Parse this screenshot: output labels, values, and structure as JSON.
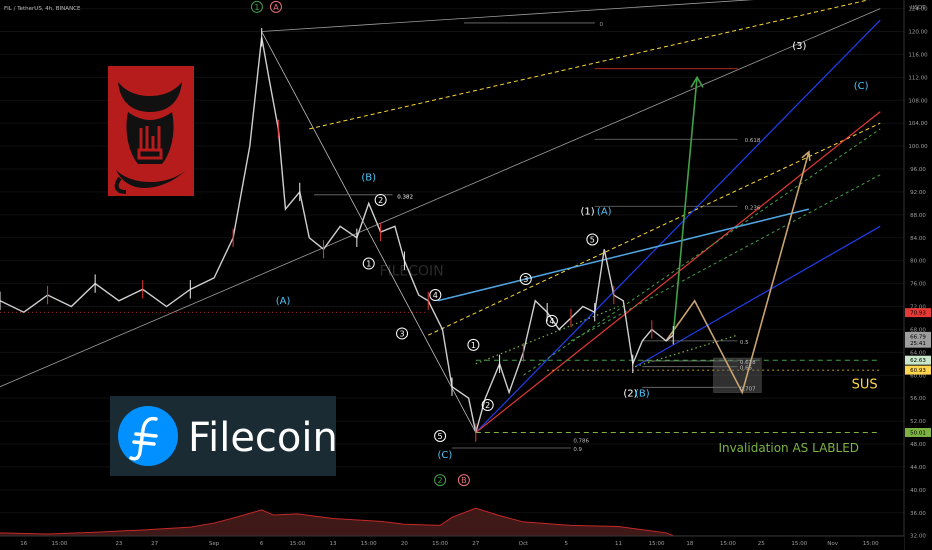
{
  "header": {
    "symbol_line": "FIL / TetherUS, 4h, BINANCE"
  },
  "chart_data": {
    "type": "candlestick",
    "title": "",
    "x_axis": {
      "labels": [
        "16",
        "15:00",
        "23",
        "27",
        "Sep",
        "6",
        "15:00",
        "13",
        "15:00",
        "20",
        "15:00",
        "27",
        "Oct",
        "5",
        "11",
        "15:00",
        "18",
        "15:00",
        "25",
        "15:00",
        "Nov",
        "15:00"
      ],
      "positions": [
        0,
        1.5,
        4,
        5.5,
        8,
        10,
        11.5,
        13,
        14.5,
        16,
        17.5,
        19,
        21,
        22.8,
        25,
        26.6,
        28,
        29.6,
        31,
        32.6,
        34,
        35.6
      ],
      "range": [
        -1,
        37
      ]
    },
    "y_axis": {
      "unit": "USDT",
      "min": 29.5,
      "max": 125.5,
      "ticks": [
        32,
        36,
        40,
        44,
        48,
        52,
        56,
        60,
        64,
        68,
        72,
        76,
        80,
        84,
        88,
        92,
        96,
        100,
        104,
        108,
        112,
        116,
        120,
        124
      ],
      "scale_labels": [
        "124.00",
        "120.00",
        "116.00",
        "112.00",
        "108.00",
        "104.00",
        "100.00",
        "96.00",
        "92.00",
        "88.00",
        "84.00",
        "80.00",
        "76.00",
        "72.00",
        "68.00",
        "64.00",
        "60.00",
        "56.00",
        "52.00",
        "48.00",
        "44.00",
        "40.00",
        "36.00",
        "32.00"
      ]
    },
    "price_tags": [
      {
        "label": "70.93",
        "value": 70.93,
        "color": "#e53935"
      },
      {
        "label": "66.79",
        "value": 66.79,
        "color": "#9e9e9e"
      },
      {
        "label": "25:41",
        "value": 65.6,
        "color": "#9e9e9e"
      },
      {
        "label": "62.63",
        "value": 62.63,
        "color": "#c8e6c9"
      },
      {
        "label": "60.93",
        "value": 60.9,
        "color": "#ffd54f"
      },
      {
        "label": "50.01",
        "value": 50.01,
        "color": "#7cb342"
      }
    ],
    "price_path": [
      [
        -1,
        73
      ],
      [
        0,
        71
      ],
      [
        1,
        74
      ],
      [
        2,
        72
      ],
      [
        3,
        76
      ],
      [
        4,
        73
      ],
      [
        5,
        75
      ],
      [
        6,
        72
      ],
      [
        7,
        75
      ],
      [
        8,
        77
      ],
      [
        8.8,
        84
      ],
      [
        9.5,
        100
      ],
      [
        10,
        119
      ],
      [
        10.3,
        112
      ],
      [
        10.7,
        103
      ],
      [
        11,
        89
      ],
      [
        11.6,
        92
      ],
      [
        12,
        84
      ],
      [
        12.6,
        82
      ],
      [
        13.3,
        86
      ],
      [
        14,
        84
      ],
      [
        14.5,
        90
      ],
      [
        15,
        85
      ],
      [
        15.6,
        86
      ],
      [
        16,
        80
      ],
      [
        16.6,
        74
      ],
      [
        17,
        73
      ],
      [
        17.6,
        68
      ],
      [
        18,
        58
      ],
      [
        18.7,
        56
      ],
      [
        19,
        50
      ],
      [
        19.4,
        56
      ],
      [
        20,
        62
      ],
      [
        20.4,
        57
      ],
      [
        21,
        64
      ],
      [
        21.5,
        73
      ],
      [
        22,
        71
      ],
      [
        22.5,
        68
      ],
      [
        23,
        70
      ],
      [
        23.5,
        72
      ],
      [
        24,
        71
      ],
      [
        24.4,
        82
      ],
      [
        24.8,
        74
      ],
      [
        25.2,
        73
      ],
      [
        25.6,
        62
      ],
      [
        26,
        66
      ],
      [
        26.4,
        68
      ],
      [
        27,
        66
      ],
      [
        27.3,
        67
      ]
    ],
    "volume_path": [
      [
        -1,
        32.5
      ],
      [
        1,
        32.3
      ],
      [
        3,
        32.6
      ],
      [
        5,
        33
      ],
      [
        7,
        33.5
      ],
      [
        8,
        34.2
      ],
      [
        9,
        35.3
      ],
      [
        10,
        36.5
      ],
      [
        10.5,
        35.6
      ],
      [
        11.5,
        35.8
      ],
      [
        13,
        35
      ],
      [
        15,
        34.5
      ],
      [
        16,
        34
      ],
      [
        17.5,
        33.8
      ],
      [
        18,
        35.2
      ],
      [
        19,
        36.8
      ],
      [
        20,
        35.5
      ],
      [
        21,
        34.4
      ],
      [
        23,
        33.8
      ],
      [
        25,
        33.6
      ],
      [
        27,
        32.5
      ],
      [
        27.3,
        32
      ]
    ],
    "wave_labels": [
      {
        "text": "1",
        "x": 9.8,
        "y": 124.3,
        "color": "#43a047",
        "circle": true
      },
      {
        "text": "A",
        "x": 10.6,
        "y": 124.3,
        "color": "#e57373",
        "circle": true
      },
      {
        "text": "(B)",
        "x": 14.5,
        "y": 94.5,
        "color": "#4fc3f7",
        "circle": false
      },
      {
        "text": "2",
        "x": 15,
        "y": 90.6,
        "color": "#ffffff",
        "circle": true
      },
      {
        "text": "0.382",
        "x": 15.7,
        "y": 91.4,
        "color": "#ffffff",
        "circle": false,
        "small": true
      },
      {
        "text": "1",
        "x": 14.5,
        "y": 79.5,
        "color": "#ffffff",
        "circle": true
      },
      {
        "text": "(A)",
        "x": 10.9,
        "y": 73,
        "color": "#4fc3f7",
        "circle": false
      },
      {
        "text": "3",
        "x": 15.9,
        "y": 67.3,
        "color": "#ffffff",
        "circle": true
      },
      {
        "text": "4",
        "x": 17.3,
        "y": 74,
        "color": "#ffffff",
        "circle": true
      },
      {
        "text": "1",
        "x": 18.9,
        "y": 65.3,
        "color": "#ffffff",
        "circle": true
      },
      {
        "text": "2",
        "x": 19.5,
        "y": 54.8,
        "color": "#ffffff",
        "circle": true
      },
      {
        "text": "3",
        "x": 21.1,
        "y": 76.8,
        "color": "#ffffff",
        "circle": true
      },
      {
        "text": "4",
        "x": 22.2,
        "y": 69.5,
        "color": "#ffffff",
        "circle": true
      },
      {
        "text": "5",
        "x": 23.9,
        "y": 83.7,
        "color": "#ffffff",
        "circle": true
      },
      {
        "text": "(1)",
        "x": 23.7,
        "y": 88.6,
        "color": "#ffffff",
        "circle": false
      },
      {
        "text": "(A)",
        "x": 24.4,
        "y": 88.6,
        "color": "#4fc3f7",
        "circle": false
      },
      {
        "text": "(2)",
        "x": 25.5,
        "y": 56.8,
        "color": "#ffffff",
        "circle": false
      },
      {
        "text": "(B)",
        "x": 26,
        "y": 56.8,
        "color": "#4fc3f7",
        "circle": false
      },
      {
        "text": "5",
        "x": 17.5,
        "y": 49.4,
        "color": "#ffffff",
        "circle": true
      },
      {
        "text": "(C)",
        "x": 17.7,
        "y": 46.1,
        "color": "#4fc3f7",
        "circle": false
      },
      {
        "text": "2",
        "x": 17.5,
        "y": 41.7,
        "color": "#43a047",
        "circle": true
      },
      {
        "text": "B",
        "x": 18.5,
        "y": 41.7,
        "color": "#e57373",
        "circle": true
      },
      {
        "text": "(3)",
        "x": 32.6,
        "y": 117.5,
        "color": "#ffffff",
        "circle": false
      },
      {
        "text": "(C)",
        "x": 35.2,
        "y": 110.5,
        "color": "#4fc3f7",
        "circle": false
      },
      {
        "text": "0.618",
        "x": 30.3,
        "y": 101.2,
        "color": "#bdbdbd",
        "circle": false,
        "small": true
      },
      {
        "text": "0.236",
        "x": 30.3,
        "y": 89.5,
        "color": "#bdbdbd",
        "circle": false,
        "small": true
      },
      {
        "text": "0",
        "x": 24.2,
        "y": 121.5,
        "color": "#9e9e9e",
        "circle": false,
        "small": true
      },
      {
        "text": "0.5",
        "x": 30.1,
        "y": 66,
        "color": "#bdbdbd",
        "circle": false,
        "small": true
      },
      {
        "text": "0.618",
        "x": 30.1,
        "y": 62.5,
        "color": "#bdbdbd",
        "circle": false,
        "small": true
      },
      {
        "text": "0.65",
        "x": 30.1,
        "y": 61.5,
        "color": "#bdbdbd",
        "circle": false,
        "small": true
      },
      {
        "text": "0.707",
        "x": 30.1,
        "y": 57.9,
        "color": "#bdbdbd",
        "circle": false,
        "small": true
      },
      {
        "text": "0.9",
        "x": 23.1,
        "y": 47.3,
        "color": "#bdbdbd",
        "circle": false,
        "small": true
      },
      {
        "text": "0.786",
        "x": 23.1,
        "y": 48.8,
        "color": "#bdbdbd",
        "circle": false,
        "small": true
      }
    ],
    "annotations": [
      {
        "text": "SUS",
        "x": 34.8,
        "y": 57.7,
        "color": "#ffd54f"
      },
      {
        "text": "Invalidation AS LABLED",
        "x": 29.2,
        "y": 46.6,
        "color": "#7cb342"
      }
    ],
    "watermark": "FILECOIN"
  },
  "logo": {
    "name": "Filecoin"
  }
}
